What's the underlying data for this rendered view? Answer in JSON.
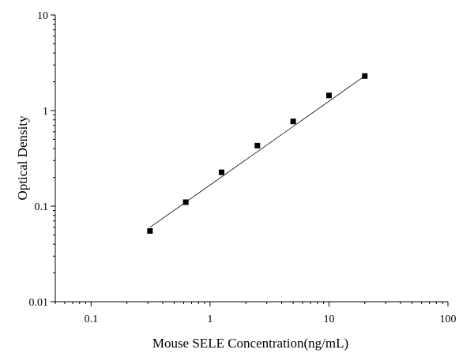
{
  "chart_data": {
    "type": "scatter",
    "title": "",
    "xlabel": "Mouse SELE Concentration(ng/mL)",
    "ylabel": "Optical Density",
    "x_scale": "log",
    "y_scale": "log",
    "xlim": [
      0.05,
      100
    ],
    "ylim": [
      0.01,
      10
    ],
    "x_ticks": [
      {
        "value": 0.1,
        "label": "0.1"
      },
      {
        "value": 1,
        "label": "1"
      },
      {
        "value": 10,
        "label": "10"
      },
      {
        "value": 100,
        "label": "100"
      }
    ],
    "y_ticks": [
      {
        "value": 0.01,
        "label": "0.01"
      },
      {
        "value": 0.1,
        "label": "0.1"
      },
      {
        "value": 1,
        "label": "1"
      },
      {
        "value": 10,
        "label": "10"
      }
    ],
    "grid": false,
    "legend": "none",
    "marker": "square",
    "colors": {
      "points": "#000000",
      "fit_line": "#000000",
      "axes": "#000000"
    },
    "points": [
      {
        "x": 0.3125,
        "y": 0.055
      },
      {
        "x": 0.625,
        "y": 0.11
      },
      {
        "x": 1.25,
        "y": 0.226
      },
      {
        "x": 2.5,
        "y": 0.43
      },
      {
        "x": 5,
        "y": 0.77
      },
      {
        "x": 10,
        "y": 1.44
      },
      {
        "x": 20,
        "y": 2.3
      }
    ],
    "fit_line": {
      "x": [
        0.3125,
        20
      ],
      "y": [
        0.06,
        2.3
      ]
    }
  }
}
